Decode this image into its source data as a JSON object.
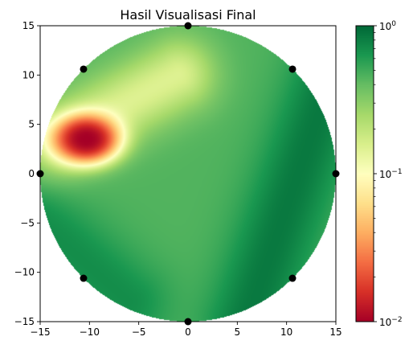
{
  "chart_data": {
    "type": "heatmap",
    "title": "Hasil Visualisasi Final",
    "xlabel": "",
    "ylabel": "",
    "xlim": [
      -15,
      15
    ],
    "ylim": [
      -15,
      15
    ],
    "xticks": [
      -15,
      -10,
      -5,
      0,
      5,
      10,
      15
    ],
    "yticks": [
      -15,
      -10,
      -5,
      0,
      5,
      10,
      15
    ],
    "xtick_labels": [
      "−15",
      "−10",
      "−5",
      "0",
      "5",
      "10",
      "15"
    ],
    "ytick_labels": [
      "−15",
      "−10",
      "−5",
      "0",
      "5",
      "10",
      "15"
    ],
    "domain": {
      "shape": "circle",
      "center": [
        0,
        0
      ],
      "radius": 15
    },
    "colormap": "RdYlGn",
    "color_scale": "log",
    "clim": [
      0.01,
      1
    ],
    "colorbar": {
      "position": "right",
      "ticks": [
        {
          "base": "10",
          "exp": "0",
          "value": 1
        },
        {
          "base": "10",
          "exp": "−1",
          "value": 0.1
        },
        {
          "base": "10",
          "exp": "−2",
          "value": 0.01
        }
      ]
    },
    "markers": {
      "color": "#000000",
      "points": [
        [
          15,
          0
        ],
        [
          10.6,
          10.6
        ],
        [
          0,
          15
        ],
        [
          -10.6,
          10.6
        ],
        [
          -15,
          0
        ],
        [
          -10.6,
          -10.6
        ],
        [
          0,
          -15
        ],
        [
          10.6,
          -10.6
        ]
      ]
    },
    "field_features": [
      {
        "kind": "background",
        "value": 0.45
      },
      {
        "kind": "low_spot",
        "center": [
          -10.3,
          3.5
        ],
        "min_value": 0.01
      },
      {
        "kind": "low_ridge",
        "from": [
          -13,
          3.5
        ],
        "to": [
          -1,
          10
        ],
        "value": 0.15
      },
      {
        "kind": "high_band",
        "from": [
          6,
          -15
        ],
        "to": [
          15,
          11
        ],
        "value": 0.85
      },
      {
        "kind": "high_band",
        "from": [
          -15,
          -5
        ],
        "to": [
          -6,
          -13
        ],
        "value": 0.7
      }
    ]
  }
}
